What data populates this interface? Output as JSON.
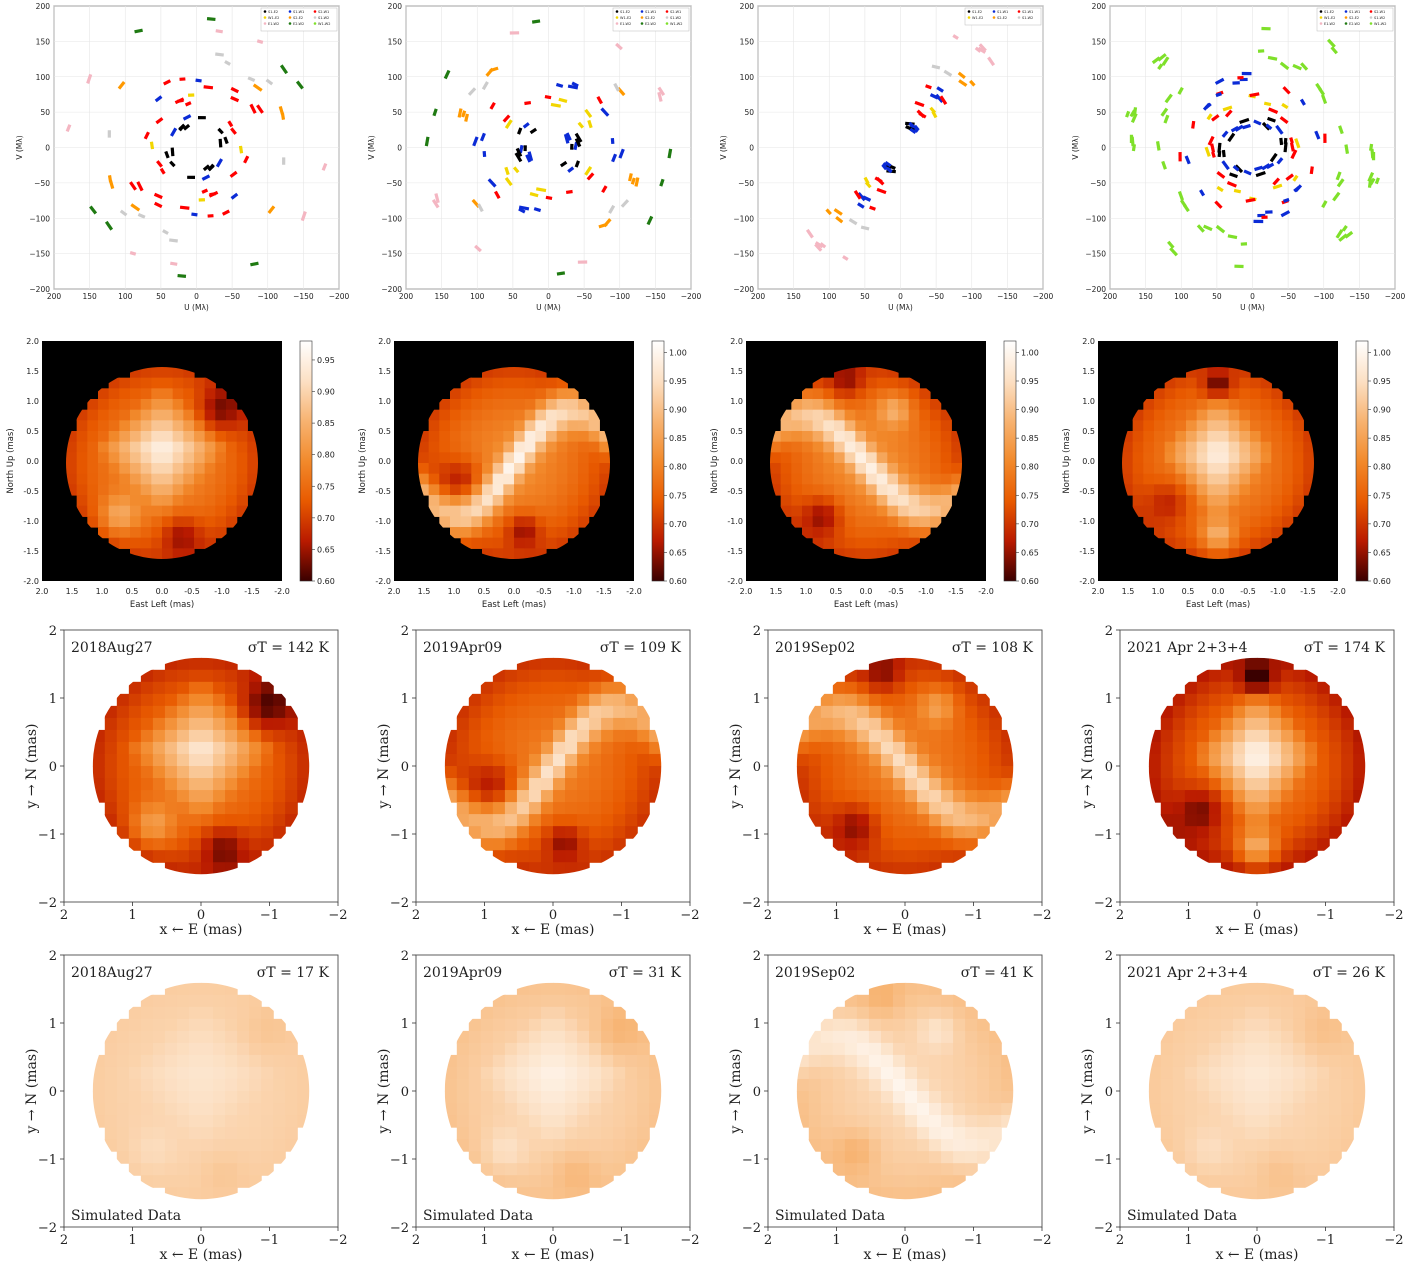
{
  "colors": {
    "bg_black": "#000000",
    "cmap_stops": [
      "#3a0000",
      "#b91a00",
      "#e85a00",
      "#f28a2c",
      "#f7b371",
      "#fce0c4",
      "#ffffff"
    ],
    "uv_colors": [
      "#000000",
      "#0b2bd6",
      "#ff0000",
      "#f2d600",
      "#ff9900",
      "#cccccc",
      "#f4b6c2",
      "#1f7a12",
      "#7fe02a"
    ]
  },
  "chart_data": [
    {
      "type": "scatter",
      "row": "uv",
      "xlabel": "U (Mλ)",
      "ylabel": "V (Mλ)",
      "xlim": [
        200,
        -200
      ],
      "ylim": [
        -200,
        200
      ],
      "xticks": [
        "200",
        "150",
        "100",
        "50",
        "0",
        "−50",
        "−100",
        "−150",
        "−200"
      ],
      "yticks": [
        "200",
        "150",
        "100",
        "50",
        "0",
        "−50",
        "−100",
        "−150",
        "−200"
      ],
      "legend": {
        "placement": "top-right",
        "entries": [
          "S1-E2",
          "S1-W1",
          "S2-W1",
          "W1-E2",
          "S2-E2",
          "S1-W2",
          "E1-W2",
          "E2-W2",
          "W1-W2"
        ]
      },
      "grid": true
    },
    {
      "type": "scatter",
      "row": "uv",
      "xlabel": "U (Mλ)",
      "ylabel": "V (Mλ)",
      "xlim": [
        200,
        -200
      ],
      "ylim": [
        -200,
        200
      ],
      "xticks": [
        "200",
        "150",
        "100",
        "50",
        "0",
        "−50",
        "−100",
        "−150",
        "−200"
      ],
      "yticks": [
        "200",
        "150",
        "100",
        "50",
        "0",
        "−50",
        "−100",
        "−150",
        "−200"
      ],
      "legend": {
        "placement": "top-right",
        "entries": [
          "S1-E2",
          "S1-W1",
          "S2-W1",
          "W1-E2",
          "S2-E2",
          "S1-W2",
          "E1-W2",
          "E2-W2",
          "W1-W2"
        ]
      },
      "grid": true
    },
    {
      "type": "scatter",
      "row": "uv",
      "xlabel": "U (Mλ)",
      "ylabel": "V (Mλ)",
      "xlim": [
        200,
        -200
      ],
      "ylim": [
        -200,
        200
      ],
      "xticks": [
        "200",
        "150",
        "100",
        "50",
        "0",
        "−50",
        "−100",
        "−150",
        "−200"
      ],
      "yticks": [
        "200",
        "150",
        "100",
        "50",
        "0",
        "−50",
        "−100",
        "−150",
        "−200"
      ],
      "legend": {
        "placement": "top-right",
        "entries": [
          "S1-E2",
          "S1-W1",
          "S2-W1",
          "W1-E2",
          "S2-E2",
          "S1-W2"
        ]
      },
      "grid": true
    },
    {
      "type": "scatter",
      "row": "uv",
      "xlabel": "U (Mλ)",
      "ylabel": "V (Mλ)",
      "xlim": [
        200,
        -200
      ],
      "ylim": [
        -200,
        200
      ],
      "xticks": [
        "200",
        "150",
        "100",
        "50",
        "0",
        "−50",
        "−100",
        "−150",
        "−200"
      ],
      "yticks": [
        "200",
        "150",
        "100",
        "50",
        "0",
        "−50",
        "−100",
        "−150",
        "−200"
      ],
      "legend": {
        "placement": "top-right",
        "entries": [
          "S1-E2",
          "S1-W1",
          "S2-W1",
          "W1-E2",
          "S2-E2",
          "S1-W2",
          "E1-W2",
          "E2-W2",
          "W1-W2"
        ]
      },
      "grid": true
    },
    {
      "type": "heatmap",
      "row": "map",
      "xlabel": "East Left (mas)",
      "ylabel": "North Up (mas)",
      "xlim": [
        2.0,
        -2.0
      ],
      "ylim": [
        -2.0,
        2.0
      ],
      "xticks": [
        "2.0",
        "1.5",
        "1.0",
        "0.5",
        "0.0",
        "-0.5",
        "-1.0",
        "-1.5",
        "-2.0"
      ],
      "yticks": [
        "2.0",
        "1.5",
        "1.0",
        "0.5",
        "0.0",
        "-0.5",
        "-1.0",
        "-1.5",
        "-2.0"
      ],
      "colorbar": {
        "min": 0.6,
        "max": 0.98,
        "ticks": [
          "0.95",
          "0.90",
          "0.85",
          "0.80",
          "0.75",
          "0.70",
          "0.65",
          "0.60"
        ],
        "tick_values": [
          0.95,
          0.9,
          0.85,
          0.8,
          0.75,
          0.7,
          0.65,
          0.6
        ]
      },
      "pattern": "diamond"
    },
    {
      "type": "heatmap",
      "row": "map",
      "xlabel": "East Left (mas)",
      "ylabel": "North Up (mas)",
      "xlim": [
        2.0,
        -2.0
      ],
      "ylim": [
        -2.0,
        2.0
      ],
      "xticks": [
        "2.0",
        "1.5",
        "1.0",
        "0.5",
        "0.0",
        "-0.5",
        "-1.0",
        "-1.5",
        "-2.0"
      ],
      "yticks": [
        "2.0",
        "1.5",
        "1.0",
        "0.5",
        "0.0",
        "-0.5",
        "-1.0",
        "-1.5",
        "-2.0"
      ],
      "colorbar": {
        "min": 0.6,
        "max": 1.02,
        "ticks": [
          "1.00",
          "0.95",
          "0.90",
          "0.85",
          "0.80",
          "0.75",
          "0.70",
          "0.65",
          "0.60"
        ],
        "tick_values": [
          1.0,
          0.95,
          0.9,
          0.85,
          0.8,
          0.75,
          0.7,
          0.65,
          0.6
        ]
      },
      "pattern": "s-curve"
    },
    {
      "type": "heatmap",
      "row": "map",
      "xlabel": "East Left (mas)",
      "ylabel": "North Up (mas)",
      "xlim": [
        2.0,
        -2.0
      ],
      "ylim": [
        -2.0,
        2.0
      ],
      "xticks": [
        "2.0",
        "1.5",
        "1.0",
        "0.5",
        "0.0",
        "-0.5",
        "-1.0",
        "-1.5",
        "-2.0"
      ],
      "yticks": [
        "2.0",
        "1.5",
        "1.0",
        "0.5",
        "0.0",
        "-0.5",
        "-1.0",
        "-1.5",
        "-2.0"
      ],
      "colorbar": {
        "min": 0.6,
        "max": 1.02,
        "ticks": [
          "1.00",
          "0.95",
          "0.90",
          "0.85",
          "0.80",
          "0.75",
          "0.70",
          "0.65",
          "0.60"
        ],
        "tick_values": [
          1.0,
          0.95,
          0.9,
          0.85,
          0.8,
          0.75,
          0.7,
          0.65,
          0.6
        ]
      },
      "pattern": "s-curve-rev"
    },
    {
      "type": "heatmap",
      "row": "map",
      "xlabel": "East Left (mas)",
      "ylabel": "North Up (mas)",
      "xlim": [
        2.0,
        -2.0
      ],
      "ylim": [
        -2.0,
        2.0
      ],
      "xticks": [
        "2.0",
        "1.5",
        "1.0",
        "0.5",
        "0.0",
        "-0.5",
        "-1.0",
        "-1.5",
        "-2.0"
      ],
      "yticks": [
        "2.0",
        "1.5",
        "1.0",
        "0.5",
        "0.0",
        "-0.5",
        "-1.0",
        "-1.5",
        "-2.0"
      ],
      "colorbar": {
        "min": 0.6,
        "max": 1.02,
        "ticks": [
          "1.00",
          "0.95",
          "0.90",
          "0.85",
          "0.80",
          "0.75",
          "0.70",
          "0.65",
          "0.60"
        ],
        "tick_values": [
          1.0,
          0.95,
          0.9,
          0.85,
          0.8,
          0.75,
          0.7,
          0.65,
          0.6
        ]
      },
      "pattern": "v-shape"
    },
    {
      "type": "heatmap",
      "row": "recon",
      "xlabel": "x ← E (mas)",
      "ylabel": "y → N (mas)",
      "xlim": [
        2,
        -2
      ],
      "ylim": [
        -2,
        2
      ],
      "xticks": [
        "2",
        "1",
        "0",
        "−1",
        "−2"
      ],
      "yticks": [
        "2",
        "1",
        "0",
        "−1",
        "−2"
      ],
      "epoch": "2018Aug27",
      "sigma": "σT = 142 K",
      "note": "",
      "pattern": "diamond",
      "contrast": 1.0
    },
    {
      "type": "heatmap",
      "row": "recon",
      "xlabel": "x ← E (mas)",
      "ylabel": "y → N (mas)",
      "xlim": [
        2,
        -2
      ],
      "ylim": [
        -2,
        2
      ],
      "xticks": [
        "2",
        "1",
        "0",
        "−1",
        "−2"
      ],
      "yticks": [
        "2",
        "1",
        "0",
        "−1",
        "−2"
      ],
      "epoch": "2019Apr09",
      "sigma": "σT = 109 K",
      "note": "",
      "pattern": "s-curve",
      "contrast": 0.9
    },
    {
      "type": "heatmap",
      "row": "recon",
      "xlabel": "x ← E (mas)",
      "ylabel": "y → N (mas)",
      "xlim": [
        2,
        -2
      ],
      "ylim": [
        -2,
        2
      ],
      "xticks": [
        "2",
        "1",
        "0",
        "−1",
        "−2"
      ],
      "yticks": [
        "2",
        "1",
        "0",
        "−1",
        "−2"
      ],
      "epoch": "2019Sep02",
      "sigma": "σT = 108 K",
      "note": "",
      "pattern": "s-curve-rev",
      "contrast": 0.9
    },
    {
      "type": "heatmap",
      "row": "recon",
      "xlabel": "x ← E (mas)",
      "ylabel": "y → N (mas)",
      "xlim": [
        2,
        -2
      ],
      "ylim": [
        -2,
        2
      ],
      "xticks": [
        "2",
        "1",
        "0",
        "−1",
        "−2"
      ],
      "yticks": [
        "2",
        "1",
        "0",
        "−1",
        "−2"
      ],
      "epoch": "2021 Apr 2+3+4",
      "sigma": "σT = 174 K",
      "note": "",
      "pattern": "v-shape",
      "contrast": 1.2
    },
    {
      "type": "heatmap",
      "row": "sim",
      "xlabel": "x ← E (mas)",
      "ylabel": "y → N (mas)",
      "xlim": [
        2,
        -2
      ],
      "ylim": [
        -2,
        2
      ],
      "xticks": [
        "2",
        "1",
        "0",
        "−1",
        "−2"
      ],
      "yticks": [
        "2",
        "1",
        "0",
        "−1",
        "−2"
      ],
      "epoch": "2018Aug27",
      "sigma": "σT = 17 K",
      "note": "Simulated Data",
      "pattern": "diamond",
      "contrast": 0.15
    },
    {
      "type": "heatmap",
      "row": "sim",
      "xlabel": "x ← E (mas)",
      "ylabel": "y → N (mas)",
      "xlim": [
        2,
        -2
      ],
      "ylim": [
        -2,
        2
      ],
      "xticks": [
        "2",
        "1",
        "0",
        "−1",
        "−2"
      ],
      "yticks": [
        "2",
        "1",
        "0",
        "−1",
        "−2"
      ],
      "epoch": "2019Apr09",
      "sigma": "σT = 31 K",
      "note": "Simulated Data",
      "pattern": "diamond",
      "contrast": 0.3
    },
    {
      "type": "heatmap",
      "row": "sim",
      "xlabel": "x ← E (mas)",
      "ylabel": "y → N (mas)",
      "xlim": [
        2,
        -2
      ],
      "ylim": [
        -2,
        2
      ],
      "xticks": [
        "2",
        "1",
        "0",
        "−1",
        "−2"
      ],
      "yticks": [
        "2",
        "1",
        "0",
        "−1",
        "−2"
      ],
      "epoch": "2019Sep02",
      "sigma": "σT = 41 K",
      "note": "Simulated Data",
      "pattern": "s-curve-rev",
      "contrast": 0.35
    },
    {
      "type": "heatmap",
      "row": "sim",
      "xlabel": "x ← E (mas)",
      "ylabel": "y → N (mas)",
      "xlim": [
        2,
        -2
      ],
      "ylim": [
        -2,
        2
      ],
      "xticks": [
        "2",
        "1",
        "0",
        "−1",
        "−2"
      ],
      "yticks": [
        "2",
        "1",
        "0",
        "−1",
        "−2"
      ],
      "epoch": "2021 Apr 2+3+4",
      "sigma": "σT = 26 K",
      "note": "Simulated Data",
      "pattern": "diamond",
      "contrast": 0.2
    }
  ]
}
